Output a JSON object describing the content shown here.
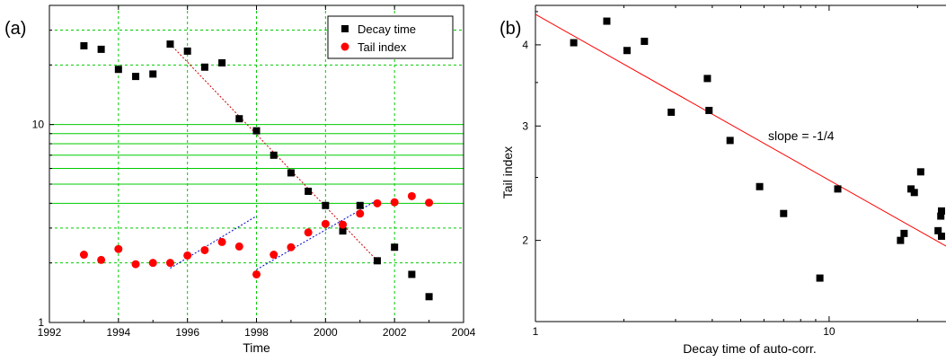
{
  "chart_data": [
    {
      "type": "scatter",
      "panel_label": "(a)",
      "xlabel": "Time",
      "ylabel": "",
      "xscale": "linear",
      "yscale": "log",
      "xlim": [
        1992,
        2004
      ],
      "ylim": [
        1,
        40
      ],
      "x_ticks": [
        "1992",
        "1994",
        "1996",
        "1998",
        "2000",
        "2002",
        "2004"
      ],
      "y_ticks": [
        "1",
        "10"
      ],
      "grid": true,
      "legend": "top-right",
      "colors": {
        "decay": "#000000",
        "tail": "#ff0000",
        "grid": "#00cc00",
        "trend_red": "#cc0000",
        "trend_blue": "#0000cc"
      },
      "series": [
        {
          "name": "Decay time",
          "marker": "square",
          "x": [
            1993,
            1993.5,
            1994,
            1994.5,
            1995,
            1995.5,
            1996,
            1996.5,
            1997,
            1997.5,
            1998,
            1998.5,
            1999,
            1999.5,
            2000,
            2000.5,
            2001,
            2001.5,
            2002,
            2002.5,
            2003
          ],
          "y": [
            25,
            24,
            19,
            17.5,
            18,
            25.5,
            23.5,
            19.5,
            20.5,
            10.7,
            9.3,
            7,
            5.7,
            4.6,
            3.9,
            2.9,
            3.9,
            2.05,
            2.4,
            1.75,
            1.35
          ]
        },
        {
          "name": "Tail index",
          "marker": "circle",
          "x": [
            1993,
            1993.5,
            1994,
            1994.5,
            1995,
            1995.5,
            1996,
            1996.5,
            1997,
            1997.5,
            1998,
            1998.5,
            1999,
            1999.5,
            2000,
            2000.5,
            2001,
            2001.5,
            2002,
            2002.5,
            2003
          ],
          "y": [
            2.2,
            2.07,
            2.35,
            1.97,
            2.0,
            2.0,
            2.18,
            2.32,
            2.55,
            2.42,
            1.75,
            2.2,
            2.4,
            2.85,
            3.15,
            3.12,
            3.55,
            4.0,
            4.05,
            4.35,
            4.03
          ]
        }
      ],
      "trend_lines": [
        {
          "x": [
            1995.5,
            2001.5
          ],
          "y": [
            25.5,
            2.05
          ],
          "color": "trend_red"
        },
        {
          "x": [
            1995.5,
            1998
          ],
          "y": [
            1.88,
            3.45
          ],
          "color": "trend_blue"
        },
        {
          "x": [
            1998,
            2001.5
          ],
          "y": [
            1.85,
            4.15
          ],
          "color": "trend_blue"
        }
      ]
    },
    {
      "type": "scatter",
      "panel_label": "(b)",
      "xlabel": "Decay time of auto-corr.",
      "ylabel": "Tail index",
      "xscale": "log",
      "yscale": "log",
      "xlim": [
        1,
        25
      ],
      "ylim": [
        1.5,
        4.6
      ],
      "x_ticks": [
        "1",
        "10"
      ],
      "y_ticks": [
        "2",
        "3",
        "4"
      ],
      "grid": false,
      "annotation": "slope = -1/4",
      "colors": {
        "points": "#000000",
        "fit": "#ff0000"
      },
      "fit_line": {
        "slope": -0.25,
        "x": [
          1,
          25
        ],
        "y": [
          4.4,
          1.96
        ]
      },
      "points": {
        "x": [
          1.35,
          1.75,
          2.05,
          2.35,
          2.9,
          3.85,
          3.9,
          4.6,
          5.8,
          7.0,
          9.3,
          10.7,
          17.5,
          18.0,
          19.0,
          19.5,
          20.5,
          23.5,
          24.0,
          25.0,
          25.5
        ],
        "y": [
          4.03,
          4.35,
          3.92,
          4.05,
          3.15,
          3.55,
          3.17,
          2.85,
          2.42,
          2.2,
          1.75,
          2.4,
          2.0,
          2.05,
          2.4,
          2.37,
          2.55,
          2.07,
          2.18,
          2.22,
          2.03
        ]
      }
    }
  ]
}
